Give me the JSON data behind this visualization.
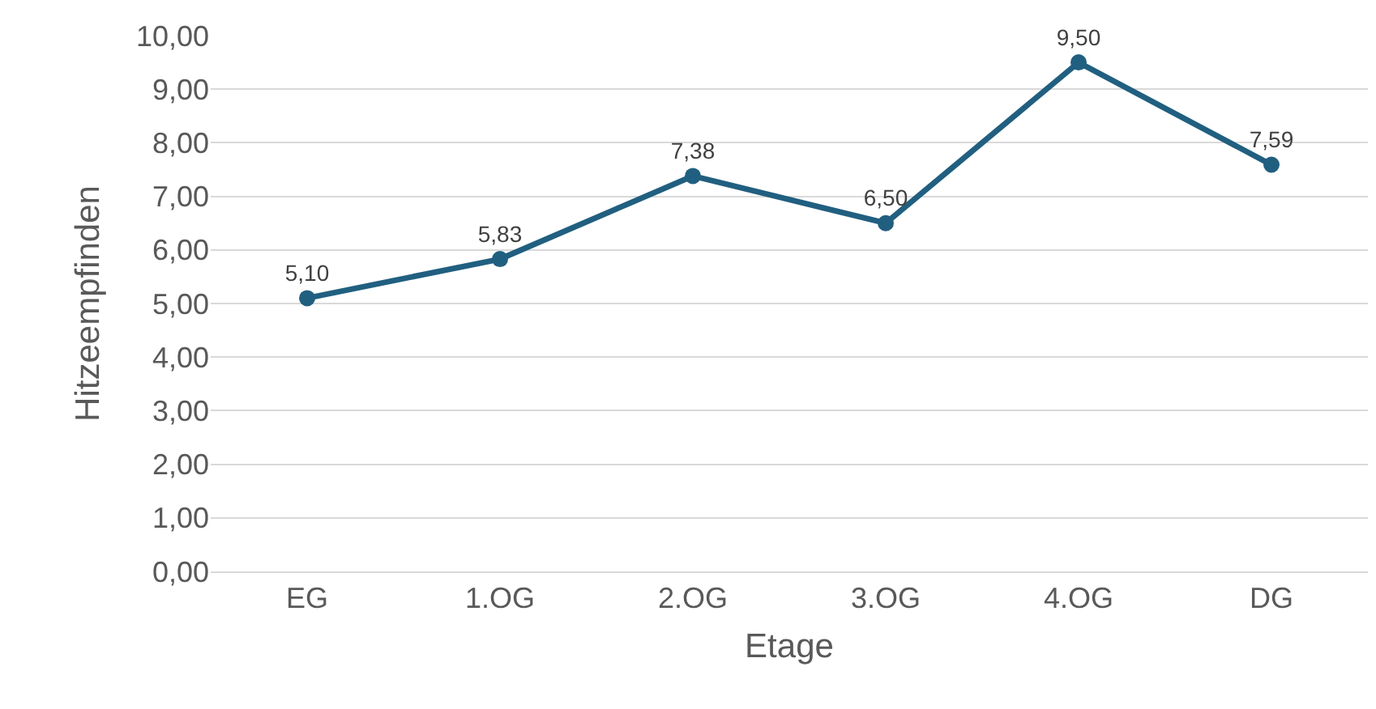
{
  "chart_data": {
    "type": "line",
    "xlabel": "Etage",
    "ylabel": "Hitzeempfinden",
    "categories": [
      "EG",
      "1.OG",
      "2.OG",
      "3.OG",
      "4.OG",
      "DG"
    ],
    "series": [
      {
        "color": "#215f80",
        "values": [
          5.1,
          5.83,
          7.38,
          6.5,
          9.5,
          7.59
        ],
        "value_labels": [
          "5,10",
          "5,83",
          "7,38",
          "6,50",
          "9,50",
          "7,59"
        ]
      }
    ],
    "ylim": [
      0,
      10
    ],
    "yticks": [
      {
        "value": 0,
        "label": "0,00"
      },
      {
        "value": 1,
        "label": "1,00"
      },
      {
        "value": 2,
        "label": "2,00"
      },
      {
        "value": 3,
        "label": "3,00"
      },
      {
        "value": 4,
        "label": "4,00"
      },
      {
        "value": 5,
        "label": "5,00"
      },
      {
        "value": 6,
        "label": "6,00"
      },
      {
        "value": 7,
        "label": "7,00"
      },
      {
        "value": 8,
        "label": "8,00"
      },
      {
        "value": 9,
        "label": "9,00"
      },
      {
        "value": 10,
        "label": "10,00"
      }
    ],
    "grid": "y",
    "marker": "circle",
    "line_style": "solid"
  }
}
